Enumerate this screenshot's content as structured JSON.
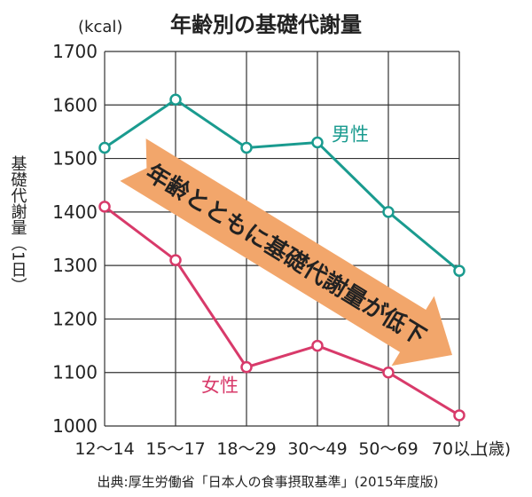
{
  "chart_data": {
    "type": "line",
    "title": "年齢別の基礎代謝量",
    "unit_label": "(kcal)",
    "ylabel": "基礎代謝量（1日）",
    "xlabel_unit": "(歳)",
    "categories": [
      "12〜14",
      "15〜17",
      "18〜29",
      "30〜49",
      "50〜69",
      "70以上"
    ],
    "ylim": [
      1000,
      1700
    ],
    "yticks": [
      1000,
      1100,
      1200,
      1300,
      1400,
      1500,
      1600,
      1700
    ],
    "grid": true,
    "series": [
      {
        "name": "男性",
        "color": "#1a9b8f",
        "values": [
          1520,
          1610,
          1520,
          1530,
          1400,
          1290
        ]
      },
      {
        "name": "女性",
        "color": "#d83a6a",
        "values": [
          1410,
          1310,
          1110,
          1150,
          1100,
          1020
        ]
      }
    ],
    "annotation": {
      "text": "年齢とともに基礎代謝量が低下",
      "color": "#f2a66b"
    },
    "source": "出典:厚生労働省「日本人の食事摂取基準」(2015年度版)"
  }
}
